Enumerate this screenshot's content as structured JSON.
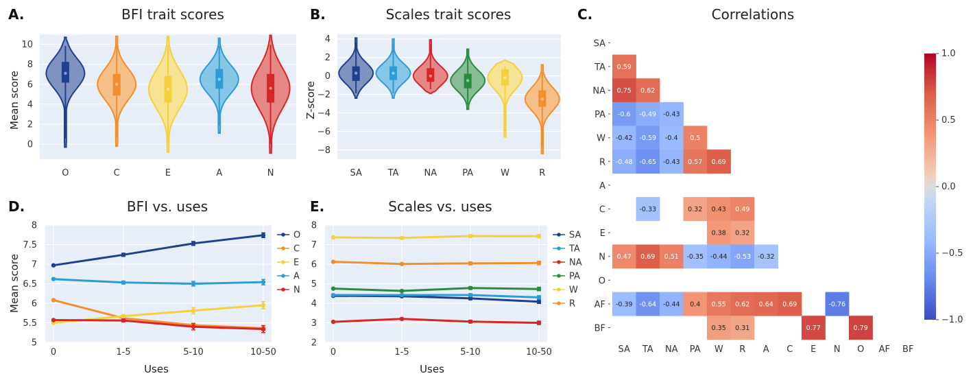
{
  "chart_data": [
    {
      "panel": "A.",
      "type": "violin",
      "title": "BFI trait scores",
      "xlabel": "",
      "ylabel": "Mean score",
      "categories": [
        "O",
        "C",
        "E",
        "A",
        "N"
      ],
      "colors": [
        "#1f3f8f",
        "#f28e2b",
        "#f4d03f",
        "#2e9bd6",
        "#d62728"
      ],
      "ylim": [
        -1.5,
        11
      ],
      "yticks": [
        "0",
        "2",
        "4",
        "6",
        "8",
        "10"
      ],
      "distributions": [
        {
          "min": -0.3,
          "q1": 6.2,
          "median": 7.1,
          "q3": 8.2,
          "max": 10.7
        },
        {
          "min": -0.2,
          "q1": 4.9,
          "median": 6.0,
          "q3": 7.0,
          "max": 10.8
        },
        {
          "min": -0.8,
          "q1": 4.2,
          "median": 5.5,
          "q3": 6.8,
          "max": 10.8
        },
        {
          "min": 1.1,
          "q1": 5.6,
          "median": 6.5,
          "q3": 7.5,
          "max": 10.6
        },
        {
          "min": -0.9,
          "q1": 4.2,
          "median": 5.6,
          "q3": 7.0,
          "max": 10.9
        }
      ]
    },
    {
      "panel": "B.",
      "type": "violin",
      "title": "Scales trait scores",
      "xlabel": "",
      "ylabel": "Z-score",
      "categories": [
        "SA",
        "TA",
        "NA",
        "PA",
        "W",
        "R"
      ],
      "colors": [
        "#1f3f8f",
        "#2e9bd6",
        "#d62728",
        "#2a8a3e",
        "#f4d03f",
        "#f28e2b"
      ],
      "ylim": [
        -9,
        4.5
      ],
      "yticks": [
        "−8",
        "−6",
        "−4",
        "−2",
        "0",
        "2",
        "4"
      ],
      "distributions": [
        {
          "min": -2.4,
          "q1": -0.5,
          "median": 0.3,
          "q3": 1.0,
          "max": 4.1
        },
        {
          "min": -2.4,
          "q1": -0.4,
          "median": 0.3,
          "q3": 1.0,
          "max": 4.0
        },
        {
          "min": -1.9,
          "q1": -0.6,
          "median": 0.0,
          "q3": 0.8,
          "max": 3.9
        },
        {
          "min": -3.6,
          "q1": -1.3,
          "median": -0.5,
          "q3": 0.2,
          "max": 2.9
        },
        {
          "min": -6.6,
          "q1": -1.0,
          "median": -0.2,
          "q3": 0.7,
          "max": 1.7
        },
        {
          "min": -8.4,
          "q1": -3.3,
          "median": -2.5,
          "q3": -1.6,
          "max": 1.2
        }
      ]
    },
    {
      "panel": "C.",
      "type": "heatmap",
      "title": "Correlations",
      "labels": [
        "SA",
        "TA",
        "NA",
        "PA",
        "W",
        "R",
        "A",
        "C",
        "E",
        "N",
        "O",
        "AF",
        "BF"
      ],
      "colorbar": {
        "min": -1.0,
        "max": 1.0,
        "ticks": [
          "1.0",
          "0.5",
          "0.0",
          "−0.5",
          "−1.0"
        ]
      },
      "cells": [
        {
          "row": 1,
          "col": 0,
          "value": 0.59,
          "label": "0.59"
        },
        {
          "row": 2,
          "col": 0,
          "value": 0.75,
          "label": "0.75"
        },
        {
          "row": 2,
          "col": 1,
          "value": 0.62,
          "label": "0.62"
        },
        {
          "row": 3,
          "col": 0,
          "value": -0.6,
          "label": "-0.6"
        },
        {
          "row": 3,
          "col": 1,
          "value": -0.49,
          "label": "-0.49"
        },
        {
          "row": 3,
          "col": 2,
          "value": -0.43,
          "label": "-0.43"
        },
        {
          "row": 4,
          "col": 0,
          "value": -0.42,
          "label": "-0.42"
        },
        {
          "row": 4,
          "col": 1,
          "value": -0.59,
          "label": "-0.59"
        },
        {
          "row": 4,
          "col": 2,
          "value": -0.4,
          "label": "-0.4"
        },
        {
          "row": 4,
          "col": 3,
          "value": 0.5,
          "label": "0.5"
        },
        {
          "row": 5,
          "col": 0,
          "value": -0.48,
          "label": "-0.48"
        },
        {
          "row": 5,
          "col": 1,
          "value": -0.65,
          "label": "-0.65"
        },
        {
          "row": 5,
          "col": 2,
          "value": -0.43,
          "label": "-0.43"
        },
        {
          "row": 5,
          "col": 3,
          "value": 0.57,
          "label": "0.57"
        },
        {
          "row": 5,
          "col": 4,
          "value": 0.69,
          "label": "0.69"
        },
        {
          "row": 7,
          "col": 1,
          "value": -0.33,
          "label": "-0.33"
        },
        {
          "row": 7,
          "col": 3,
          "value": 0.32,
          "label": "0.32"
        },
        {
          "row": 7,
          "col": 4,
          "value": 0.43,
          "label": "0.43"
        },
        {
          "row": 7,
          "col": 5,
          "value": 0.49,
          "label": "0.49"
        },
        {
          "row": 8,
          "col": 4,
          "value": 0.38,
          "label": "0.38"
        },
        {
          "row": 8,
          "col": 5,
          "value": 0.32,
          "label": "0.32"
        },
        {
          "row": 9,
          "col": 0,
          "value": 0.47,
          "label": "0.47"
        },
        {
          "row": 9,
          "col": 1,
          "value": 0.69,
          "label": "0.69"
        },
        {
          "row": 9,
          "col": 2,
          "value": 0.51,
          "label": "0.51"
        },
        {
          "row": 9,
          "col": 3,
          "value": -0.35,
          "label": "-0.35"
        },
        {
          "row": 9,
          "col": 4,
          "value": -0.44,
          "label": "-0.44"
        },
        {
          "row": 9,
          "col": 5,
          "value": -0.53,
          "label": "-0.53"
        },
        {
          "row": 9,
          "col": 6,
          "value": -0.32,
          "label": "-0.32"
        },
        {
          "row": 11,
          "col": 0,
          "value": -0.39,
          "label": "-0.39"
        },
        {
          "row": 11,
          "col": 1,
          "value": -0.64,
          "label": "-0.64"
        },
        {
          "row": 11,
          "col": 2,
          "value": -0.44,
          "label": "-0.44"
        },
        {
          "row": 11,
          "col": 3,
          "value": 0.4,
          "label": "0.4"
        },
        {
          "row": 11,
          "col": 4,
          "value": 0.55,
          "label": "0.55"
        },
        {
          "row": 11,
          "col": 5,
          "value": 0.62,
          "label": "0.62"
        },
        {
          "row": 11,
          "col": 6,
          "value": 0.64,
          "label": "0.64"
        },
        {
          "row": 11,
          "col": 7,
          "value": 0.69,
          "label": "0.69"
        },
        {
          "row": 11,
          "col": 9,
          "value": -0.76,
          "label": "-0.76"
        },
        {
          "row": 12,
          "col": 4,
          "value": 0.35,
          "label": "0.35"
        },
        {
          "row": 12,
          "col": 5,
          "value": 0.31,
          "label": "0.31"
        },
        {
          "row": 12,
          "col": 8,
          "value": 0.77,
          "label": "0.77"
        },
        {
          "row": 12,
          "col": 10,
          "value": 0.79,
          "label": "0.79"
        }
      ]
    },
    {
      "panel": "D.",
      "type": "line",
      "title": "BFI vs. uses",
      "xlabel": "Uses",
      "ylabel": "Mean score",
      "x": [
        "0",
        "1-5",
        "5-10",
        "10-50"
      ],
      "ylim": [
        5,
        8
      ],
      "yticks": [
        "5",
        "5.5",
        "6",
        "6.5",
        "7",
        "7.5",
        "8"
      ],
      "legend_position": "right",
      "series": [
        {
          "name": "O",
          "color": "#1f3f8f",
          "values": [
            6.97,
            7.24,
            7.53,
            7.74
          ],
          "err": [
            0.02,
            0.04,
            0.05,
            0.06
          ]
        },
        {
          "name": "C",
          "color": "#f28e2b",
          "values": [
            6.08,
            5.62,
            5.44,
            5.36
          ],
          "err": [
            0.02,
            0.04,
            0.05,
            0.06
          ]
        },
        {
          "name": "E",
          "color": "#f4d03f",
          "values": [
            5.5,
            5.67,
            5.81,
            5.95
          ],
          "err": [
            0.02,
            0.04,
            0.08,
            0.09
          ]
        },
        {
          "name": "A",
          "color": "#2e9bd6",
          "values": [
            6.62,
            6.53,
            6.5,
            6.54
          ],
          "err": [
            0.02,
            0.04,
            0.06,
            0.07
          ]
        },
        {
          "name": "N",
          "color": "#d62728",
          "values": [
            5.57,
            5.56,
            5.4,
            5.34
          ],
          "err": [
            0.02,
            0.04,
            0.08,
            0.09
          ]
        }
      ]
    },
    {
      "panel": "E.",
      "type": "line",
      "title": "Scales vs. uses",
      "xlabel": "Uses",
      "ylabel": "",
      "x": [
        "0",
        "1-5",
        "5-10",
        "10-50"
      ],
      "ylim": [
        2,
        8
      ],
      "yticks": [
        "2",
        "3",
        "4",
        "5",
        "6",
        "7",
        "8"
      ],
      "legend_position": "right",
      "series": [
        {
          "name": "SA",
          "color": "#1f3f8f",
          "values": [
            4.38,
            4.36,
            4.25,
            4.08
          ],
          "err": [
            0.03,
            0.05,
            0.07,
            0.09
          ]
        },
        {
          "name": "TA",
          "color": "#2e9bd6",
          "values": [
            4.42,
            4.42,
            4.42,
            4.3
          ],
          "err": [
            0.03,
            0.05,
            0.07,
            0.09
          ]
        },
        {
          "name": "NA",
          "color": "#d62728",
          "values": [
            3.05,
            3.2,
            3.06,
            3.0
          ],
          "err": [
            0.03,
            0.05,
            0.07,
            0.09
          ]
        },
        {
          "name": "PA",
          "color": "#2a8a3e",
          "values": [
            4.75,
            4.63,
            4.78,
            4.73
          ],
          "err": [
            0.03,
            0.05,
            0.07,
            0.09
          ]
        },
        {
          "name": "W",
          "color": "#f4d03f",
          "values": [
            7.37,
            7.34,
            7.44,
            7.43
          ],
          "err": [
            0.03,
            0.05,
            0.07,
            0.09
          ]
        },
        {
          "name": "R",
          "color": "#f28e2b",
          "values": [
            6.12,
            6.01,
            6.04,
            6.06
          ],
          "err": [
            0.03,
            0.05,
            0.07,
            0.09
          ]
        }
      ]
    }
  ]
}
